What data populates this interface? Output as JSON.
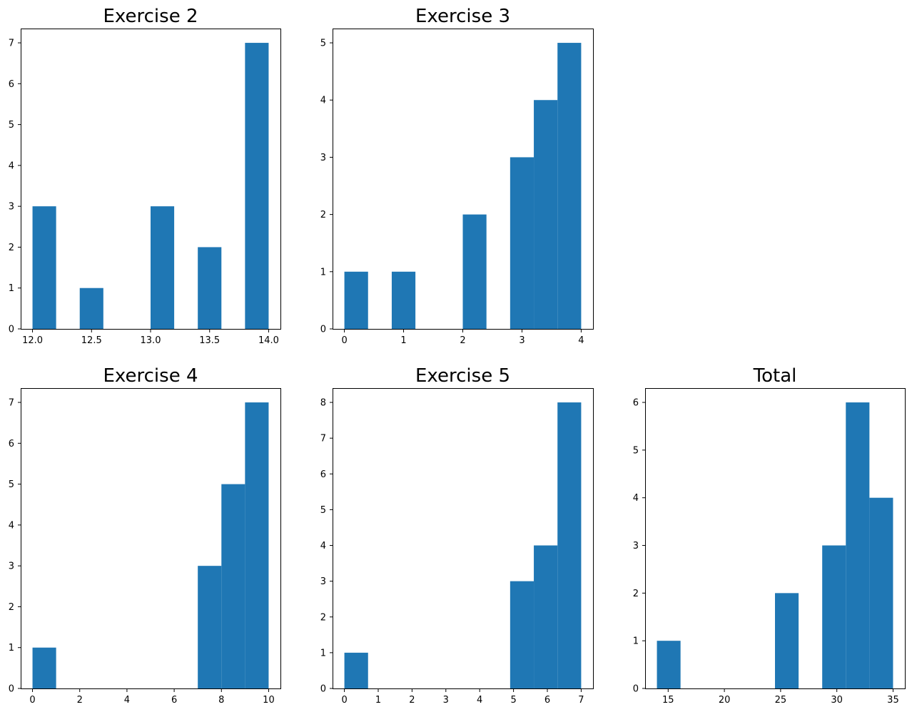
{
  "chart_data": [
    {
      "type": "bar",
      "title": "Exercise 2",
      "bins": [
        {
          "start": 12.0,
          "end": 12.2,
          "count": 3
        },
        {
          "start": 12.2,
          "end": 12.4,
          "count": 0
        },
        {
          "start": 12.4,
          "end": 12.6,
          "count": 1
        },
        {
          "start": 12.6,
          "end": 12.8,
          "count": 0
        },
        {
          "start": 12.8,
          "end": 13.0,
          "count": 0
        },
        {
          "start": 13.0,
          "end": 13.2,
          "count": 3
        },
        {
          "start": 13.2,
          "end": 13.4,
          "count": 0
        },
        {
          "start": 13.4,
          "end": 13.6,
          "count": 2
        },
        {
          "start": 13.6,
          "end": 13.8,
          "count": 0
        },
        {
          "start": 13.8,
          "end": 14.0,
          "count": 7
        }
      ],
      "xlim": [
        11.9,
        14.1
      ],
      "ylim": [
        0,
        7.35
      ],
      "xticks": [
        12.0,
        12.5,
        13.0,
        13.5,
        14.0
      ],
      "xtick_labels": [
        "12.0",
        "12.5",
        "13.0",
        "13.5",
        "14.0"
      ],
      "yticks": [
        0,
        1,
        2,
        3,
        4,
        5,
        6,
        7
      ],
      "ytick_labels": [
        "0",
        "1",
        "2",
        "3",
        "4",
        "5",
        "6",
        "7"
      ],
      "color": "#1f77b4"
    },
    {
      "type": "bar",
      "title": "Exercise 3",
      "bins": [
        {
          "start": 0.0,
          "end": 0.4,
          "count": 1
        },
        {
          "start": 0.4,
          "end": 0.8,
          "count": 0
        },
        {
          "start": 0.8,
          "end": 1.2,
          "count": 1
        },
        {
          "start": 1.2,
          "end": 1.6,
          "count": 0
        },
        {
          "start": 1.6,
          "end": 2.0,
          "count": 0
        },
        {
          "start": 2.0,
          "end": 2.4,
          "count": 2
        },
        {
          "start": 2.4,
          "end": 2.8,
          "count": 0
        },
        {
          "start": 2.8,
          "end": 3.2,
          "count": 3
        },
        {
          "start": 3.2,
          "end": 3.6,
          "count": 4
        },
        {
          "start": 3.6,
          "end": 4.0,
          "count": 5
        }
      ],
      "xlim": [
        -0.2,
        4.2
      ],
      "ylim": [
        0,
        5.25
      ],
      "xticks": [
        0,
        1,
        2,
        3,
        4
      ],
      "xtick_labels": [
        "0",
        "1",
        "2",
        "3",
        "4"
      ],
      "yticks": [
        0,
        1,
        2,
        3,
        4,
        5
      ],
      "ytick_labels": [
        "0",
        "1",
        "2",
        "3",
        "4",
        "5"
      ],
      "color": "#1f77b4"
    },
    {
      "type": "bar",
      "title": "Exercise 4",
      "bins": [
        {
          "start": 0,
          "end": 1,
          "count": 1
        },
        {
          "start": 1,
          "end": 2,
          "count": 0
        },
        {
          "start": 2,
          "end": 3,
          "count": 0
        },
        {
          "start": 3,
          "end": 4,
          "count": 0
        },
        {
          "start": 4,
          "end": 5,
          "count": 0
        },
        {
          "start": 5,
          "end": 6,
          "count": 0
        },
        {
          "start": 6,
          "end": 7,
          "count": 0
        },
        {
          "start": 7,
          "end": 8,
          "count": 3
        },
        {
          "start": 8,
          "end": 9,
          "count": 5
        },
        {
          "start": 9,
          "end": 10,
          "count": 7
        }
      ],
      "xlim": [
        -0.5,
        10.5
      ],
      "ylim": [
        0,
        7.35
      ],
      "xticks": [
        0,
        2,
        4,
        6,
        8,
        10
      ],
      "xtick_labels": [
        "0",
        "2",
        "4",
        "6",
        "8",
        "10"
      ],
      "yticks": [
        0,
        1,
        2,
        3,
        4,
        5,
        6,
        7
      ],
      "ytick_labels": [
        "0",
        "1",
        "2",
        "3",
        "4",
        "5",
        "6",
        "7"
      ],
      "color": "#1f77b4"
    },
    {
      "type": "bar",
      "title": "Exercise 5",
      "bins": [
        {
          "start": 0.0,
          "end": 0.7,
          "count": 1
        },
        {
          "start": 0.7,
          "end": 1.4,
          "count": 0
        },
        {
          "start": 1.4,
          "end": 2.1,
          "count": 0
        },
        {
          "start": 2.1,
          "end": 2.8,
          "count": 0
        },
        {
          "start": 2.8,
          "end": 3.5,
          "count": 0
        },
        {
          "start": 3.5,
          "end": 4.2,
          "count": 0
        },
        {
          "start": 4.2,
          "end": 4.9,
          "count": 0
        },
        {
          "start": 4.9,
          "end": 5.6,
          "count": 3
        },
        {
          "start": 5.6,
          "end": 6.3,
          "count": 4
        },
        {
          "start": 6.3,
          "end": 7.0,
          "count": 8
        }
      ],
      "xlim": [
        -0.35,
        7.35
      ],
      "ylim": [
        0,
        8.4
      ],
      "xticks": [
        0,
        1,
        2,
        3,
        4,
        5,
        6,
        7
      ],
      "xtick_labels": [
        "0",
        "1",
        "2",
        "3",
        "4",
        "5",
        "6",
        "7"
      ],
      "yticks": [
        0,
        1,
        2,
        3,
        4,
        5,
        6,
        7,
        8
      ],
      "ytick_labels": [
        "0",
        "1",
        "2",
        "3",
        "4",
        "5",
        "6",
        "7",
        "8"
      ],
      "color": "#1f77b4"
    },
    {
      "type": "bar",
      "title": "Total",
      "bins": [
        {
          "start": 14.0,
          "end": 16.1,
          "count": 1
        },
        {
          "start": 16.1,
          "end": 18.2,
          "count": 0
        },
        {
          "start": 18.2,
          "end": 20.3,
          "count": 0
        },
        {
          "start": 20.3,
          "end": 22.4,
          "count": 0
        },
        {
          "start": 22.4,
          "end": 24.5,
          "count": 0
        },
        {
          "start": 24.5,
          "end": 26.6,
          "count": 2
        },
        {
          "start": 26.6,
          "end": 28.7,
          "count": 0
        },
        {
          "start": 28.7,
          "end": 30.8,
          "count": 3
        },
        {
          "start": 30.8,
          "end": 32.9,
          "count": 6
        },
        {
          "start": 32.9,
          "end": 35.0,
          "count": 4
        }
      ],
      "xlim": [
        12.95,
        36.05
      ],
      "ylim": [
        0,
        6.3
      ],
      "xticks": [
        15,
        20,
        25,
        30,
        35
      ],
      "xtick_labels": [
        "15",
        "20",
        "25",
        "30",
        "35"
      ],
      "yticks": [
        0,
        1,
        2,
        3,
        4,
        5,
        6
      ],
      "ytick_labels": [
        "0",
        "1",
        "2",
        "3",
        "4",
        "5",
        "6"
      ],
      "color": "#1f77b4"
    }
  ]
}
